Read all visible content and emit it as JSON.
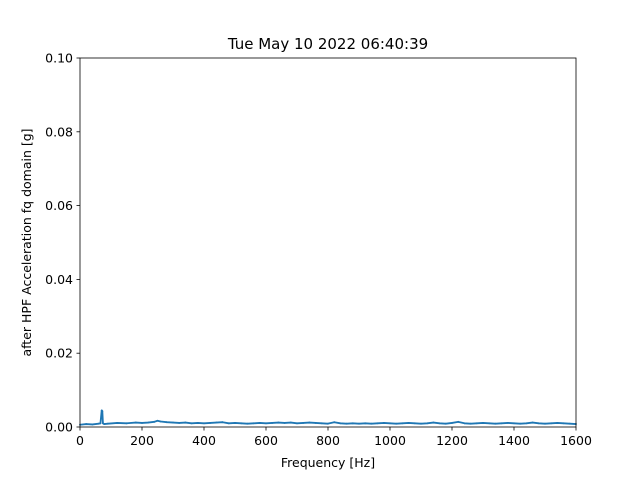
{
  "chart_data": {
    "type": "line",
    "title": "Tue May 10 2022 06:40:39",
    "xlabel": "Frequency [Hz]",
    "ylabel": "after HPF Acceleration fq domain [g]",
    "xlim": [
      0,
      1600
    ],
    "ylim": [
      0,
      0.1
    ],
    "xticks": [
      0,
      200,
      400,
      600,
      800,
      1000,
      1200,
      1400,
      1600
    ],
    "yticks": [
      0.0,
      0.02,
      0.04,
      0.06,
      0.08,
      0.1
    ],
    "xtick_labels": [
      "0",
      "200",
      "400",
      "600",
      "800",
      "1000",
      "1200",
      "1400",
      "1600"
    ],
    "ytick_labels": [
      "0.00",
      "0.02",
      "0.04",
      "0.06",
      "0.08",
      "0.10"
    ],
    "grid": false,
    "color": "#1f77b4",
    "series": [
      {
        "x": [
          0,
          20,
          40,
          60,
          66,
          70,
          72,
          74,
          78,
          90,
          120,
          150,
          180,
          200,
          220,
          240,
          250,
          260,
          280,
          300,
          320,
          340,
          360,
          380,
          400,
          420,
          440,
          460,
          480,
          500,
          520,
          540,
          560,
          580,
          600,
          620,
          640,
          660,
          680,
          700,
          720,
          740,
          760,
          780,
          800,
          820,
          840,
          860,
          880,
          900,
          920,
          940,
          960,
          980,
          1000,
          1020,
          1040,
          1060,
          1080,
          1100,
          1120,
          1140,
          1160,
          1180,
          1200,
          1220,
          1240,
          1260,
          1280,
          1300,
          1320,
          1340,
          1360,
          1380,
          1400,
          1420,
          1440,
          1460,
          1480,
          1500,
          1520,
          1540,
          1560,
          1580,
          1600
        ],
        "y": [
          0.0006,
          0.0008,
          0.0007,
          0.0009,
          0.001,
          0.0045,
          0.0043,
          0.001,
          0.0008,
          0.0009,
          0.0011,
          0.001,
          0.0012,
          0.0011,
          0.0012,
          0.0014,
          0.0017,
          0.0015,
          0.0013,
          0.0012,
          0.0011,
          0.0012,
          0.001,
          0.0011,
          0.001,
          0.0011,
          0.0012,
          0.0013,
          0.001,
          0.0011,
          0.001,
          0.0009,
          0.001,
          0.0011,
          0.001,
          0.0011,
          0.0012,
          0.0011,
          0.0012,
          0.001,
          0.0011,
          0.0012,
          0.0011,
          0.001,
          0.0009,
          0.0013,
          0.001,
          0.0009,
          0.001,
          0.0009,
          0.001,
          0.0009,
          0.001,
          0.0011,
          0.001,
          0.0009,
          0.001,
          0.0011,
          0.001,
          0.0009,
          0.001,
          0.0012,
          0.001,
          0.0009,
          0.0011,
          0.0014,
          0.001,
          0.0009,
          0.001,
          0.0011,
          0.001,
          0.0009,
          0.001,
          0.0011,
          0.001,
          0.0009,
          0.001,
          0.0012,
          0.001,
          0.0009,
          0.001,
          0.0011,
          0.001,
          0.0009,
          0.0008
        ]
      }
    ]
  }
}
